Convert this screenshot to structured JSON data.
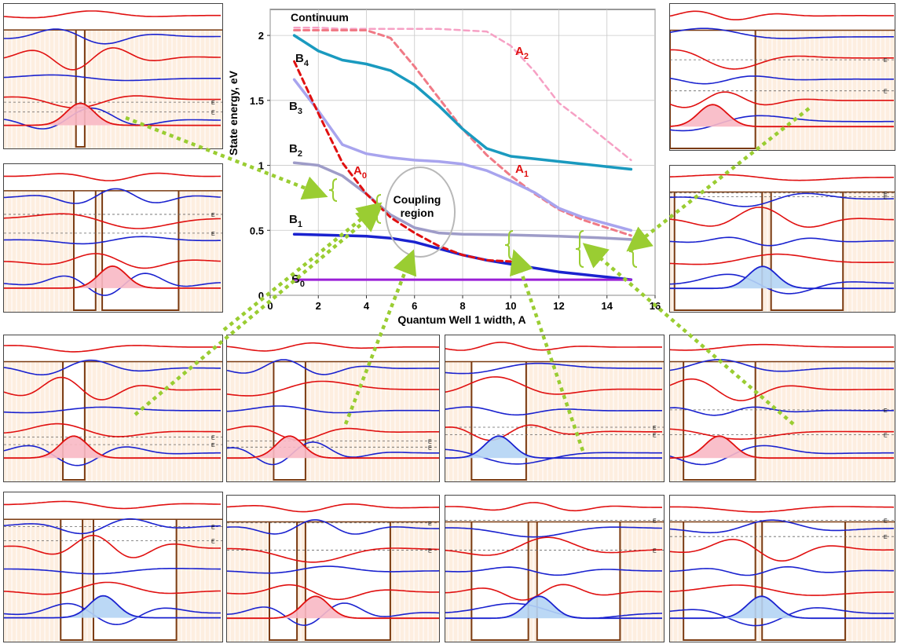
{
  "chart_data": {
    "type": "line",
    "xlabel": "Quantum Well 1 width,  A",
    "ylabel": "State energy, eV",
    "xlim": [
      0,
      16
    ],
    "ylim": [
      0,
      2.2
    ],
    "xticks": [
      0,
      2,
      4,
      6,
      8,
      10,
      12,
      14,
      16
    ],
    "yticks": [
      0,
      0.5,
      1,
      1.5,
      2
    ],
    "grid": true,
    "series": [
      {
        "name": "B0",
        "label": "B",
        "sub": "0",
        "color": "#9a1fd6",
        "dash": false,
        "width": 3,
        "x": [
          1,
          15
        ],
        "y": [
          0.12,
          0.12
        ]
      },
      {
        "name": "B1",
        "label": "B",
        "sub": "1",
        "color": "#1a22cf",
        "dash": false,
        "width": 3.5,
        "x": [
          1,
          3,
          4,
          5,
          6,
          7,
          8,
          9,
          10,
          11,
          12,
          13,
          14,
          15
        ],
        "y": [
          0.47,
          0.46,
          0.455,
          0.44,
          0.41,
          0.36,
          0.31,
          0.27,
          0.24,
          0.21,
          0.18,
          0.16,
          0.14,
          0.12
        ]
      },
      {
        "name": "B2",
        "label": "B",
        "sub": "2",
        "color": "#9e9cc8",
        "dash": false,
        "width": 3.5,
        "x": [
          1,
          2,
          3,
          4,
          5,
          6,
          7,
          8,
          10,
          12,
          14,
          15
        ],
        "y": [
          1.02,
          1.0,
          0.92,
          0.78,
          0.62,
          0.52,
          0.48,
          0.47,
          0.465,
          0.455,
          0.44,
          0.43
        ]
      },
      {
        "name": "B3",
        "label": "B",
        "sub": "3",
        "color": "#a8a4ee",
        "dash": false,
        "width": 3.5,
        "x": [
          1,
          2,
          3,
          4,
          5,
          6,
          7,
          8,
          9,
          10,
          11,
          12,
          13,
          14,
          15
        ],
        "y": [
          1.66,
          1.42,
          1.16,
          1.09,
          1.06,
          1.04,
          1.03,
          1.01,
          0.96,
          0.88,
          0.79,
          0.67,
          0.6,
          0.55,
          0.5
        ]
      },
      {
        "name": "B4",
        "label": "B",
        "sub": "4",
        "color": "#1a9abf",
        "dash": false,
        "width": 3.5,
        "x": [
          1,
          2,
          3,
          4,
          5,
          6,
          7,
          8,
          9,
          10,
          11,
          12,
          13,
          14,
          15
        ],
        "y": [
          2.0,
          1.88,
          1.81,
          1.78,
          1.73,
          1.62,
          1.46,
          1.28,
          1.13,
          1.07,
          1.05,
          1.03,
          1.01,
          0.99,
          0.97
        ]
      },
      {
        "name": "A0",
        "label": "A",
        "sub": "0",
        "color": "#e01010",
        "dash": true,
        "width": 3,
        "x": [
          1,
          2,
          3,
          4,
          5,
          6,
          7,
          8,
          9,
          10
        ],
        "y": [
          1.8,
          1.4,
          1.02,
          0.78,
          0.6,
          0.48,
          0.38,
          0.31,
          0.27,
          0.26
        ]
      },
      {
        "name": "A1",
        "label": "A",
        "sub": "1",
        "color": "#f07a86",
        "dash": true,
        "width": 3,
        "x": [
          1,
          2,
          3,
          4,
          5,
          6,
          7,
          8,
          9,
          10,
          11,
          12,
          13,
          14,
          15
        ],
        "y": [
          2.04,
          2.04,
          2.04,
          2.04,
          1.98,
          1.76,
          1.52,
          1.28,
          1.08,
          0.92,
          0.78,
          0.66,
          0.58,
          0.52,
          0.46
        ]
      },
      {
        "name": "A2",
        "label": "A",
        "sub": "2",
        "color": "#f6a0c4",
        "dash": true,
        "width": 2.5,
        "x": [
          1,
          2,
          3,
          4,
          5,
          6,
          7,
          8,
          9,
          10,
          11,
          12,
          13,
          14,
          15
        ],
        "y": [
          2.06,
          2.06,
          2.05,
          2.05,
          2.05,
          2.05,
          2.05,
          2.04,
          2.03,
          1.92,
          1.72,
          1.48,
          1.34,
          1.19,
          1.04
        ]
      }
    ],
    "annotations": {
      "continuum": "Continuum",
      "coupling_line1": "Coupling",
      "coupling_line2": "region"
    }
  },
  "level_labels": [
    "E",
    "E",
    "E"
  ],
  "colors": {
    "barrier_fill": "#fdeee0",
    "barrier_edge": "#7a3a10",
    "wave_red": "#e01010",
    "wave_blue": "#1a22cf",
    "fill_pink": "#f8b8c4",
    "fill_blue": "#b4d4f4",
    "arrow_green": "#9acd32",
    "brace_green": "#9acd32"
  }
}
